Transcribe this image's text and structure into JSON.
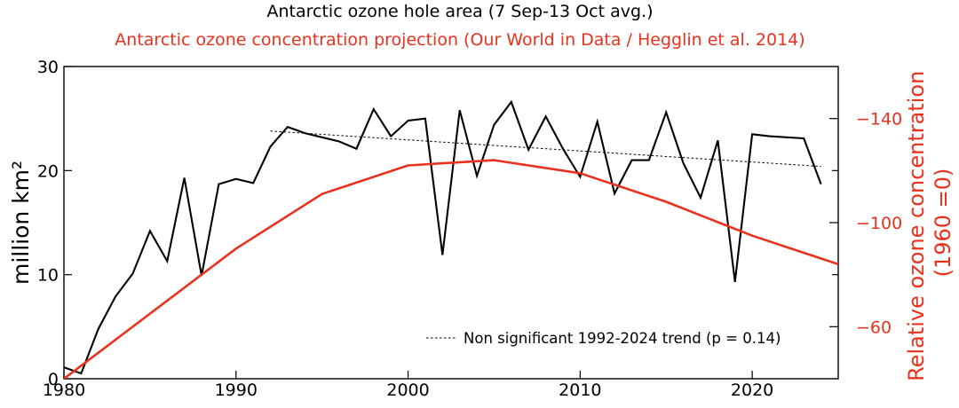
{
  "chart_data": {
    "type": "line",
    "title": "Antarctic ozone hole area (7 Sep-13 Oct avg.)",
    "subtitle": "Antarctic ozone concentration projection (Our World in Data / Hegglin et al. 2014)",
    "ylabel": "million km²",
    "y2label_line1": "Relative ozone concentration",
    "y2label_line2": "(1960 =0)",
    "xlim": [
      1980,
      2025
    ],
    "ylim": [
      0,
      30
    ],
    "y2lim": [
      -40,
      -160
    ],
    "x_ticks": [
      1980,
      1990,
      2000,
      2010,
      2020
    ],
    "x_tick_labels": [
      "1980",
      "1990",
      "2000",
      "2010",
      "2020"
    ],
    "y_ticks": [
      0,
      10,
      20,
      30
    ],
    "y_tick_labels": [
      "0",
      "10",
      "20",
      "30"
    ],
    "y2_ticks": [
      -60,
      -100,
      -140
    ],
    "y2_tick_labels": [
      "−60",
      "−100",
      "−140"
    ],
    "legend_position": "bottom-right",
    "colors": {
      "area": "#000000",
      "projection": "#e8321e",
      "trend": "#000000"
    },
    "series": [
      {
        "name": "",
        "axis": "left",
        "x": [
          1980,
          1981,
          1982,
          1983,
          1984,
          1985,
          1986,
          1987,
          1988,
          1989,
          1990,
          1991,
          1992,
          1993,
          1994,
          1995,
          1996,
          1997,
          1998,
          1999,
          2000,
          2001,
          2002,
          2003,
          2004,
          2005,
          2006,
          2007,
          2008,
          2009,
          2010,
          2011,
          2012,
          2013,
          2014,
          2015,
          2016,
          2017,
          2018,
          2019,
          2020,
          2021,
          2023,
          2024
        ],
        "values": [
          1.1,
          0.5,
          4.8,
          7.9,
          10.1,
          14.2,
          11.3,
          19.3,
          9.9,
          18.7,
          19.2,
          18.8,
          22.3,
          24.2,
          23.6,
          23.2,
          22.8,
          22.1,
          25.9,
          23.3,
          24.8,
          25.0,
          11.9,
          25.8,
          19.5,
          24.4,
          26.6,
          22.0,
          25.2,
          22.1,
          19.4,
          24.7,
          17.8,
          21.0,
          21.0,
          25.6,
          20.7,
          17.4,
          22.9,
          9.3,
          23.5,
          23.3,
          23.1,
          18.7
        ]
      },
      {
        "name": "",
        "axis": "right",
        "x": [
          1980,
          1990,
          1995,
          2000,
          2005,
          2010,
          2015,
          2020,
          2025
        ],
        "values": [
          -40,
          -90,
          -111,
          -122,
          -124,
          -119,
          -108,
          -95,
          -84
        ]
      },
      {
        "name": "Non significant 1992-2024 trend (p = 0.14)",
        "axis": "left",
        "x": [
          1992,
          2024
        ],
        "values": [
          23.8,
          20.4
        ]
      }
    ]
  }
}
